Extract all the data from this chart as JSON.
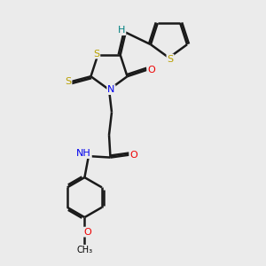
{
  "bg_color": "#ebebeb",
  "atom_colors": {
    "S": "#b8a000",
    "N": "#0000ee",
    "O": "#ee0000",
    "C": "#000000",
    "H": "#008080"
  },
  "bond_color": "#1a1a1a",
  "bond_width": 1.8,
  "figsize": [
    3.0,
    3.0
  ],
  "dpi": 100
}
